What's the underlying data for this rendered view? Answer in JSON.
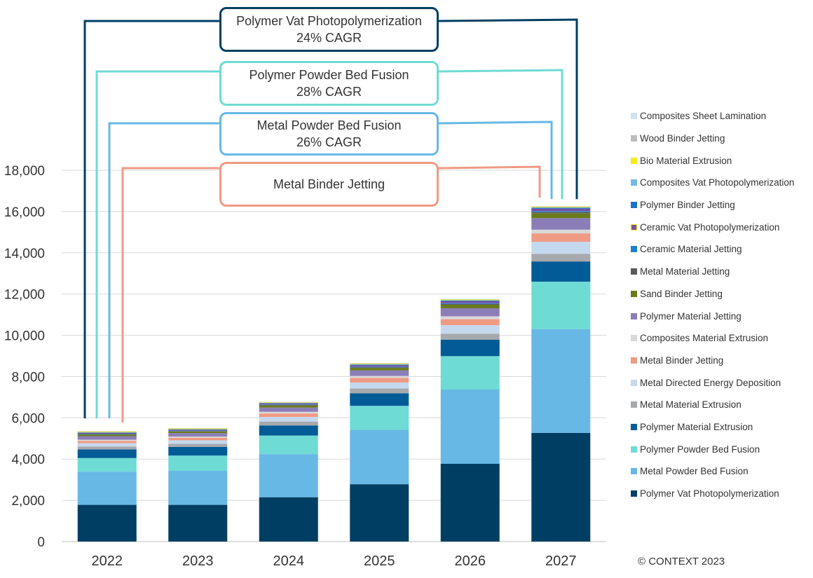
{
  "chart_data": {
    "type": "bar",
    "stacked": true,
    "categories": [
      "2022",
      "2023",
      "2024",
      "2025",
      "2026",
      "2027"
    ],
    "ylim": [
      0,
      18000
    ],
    "y_ticks": [
      "0",
      "2,000",
      "4,000",
      "6,000",
      "8,000",
      "10,000",
      "12,000",
      "14,000",
      "16,000",
      "18,000"
    ],
    "grid": true,
    "legend_position": "right",
    "series": [
      {
        "name": "Polymer Vat Photopolymerization",
        "color": "#003f63",
        "values": [
          1780,
          1780,
          2150,
          2780,
          3770,
          5270
        ]
      },
      {
        "name": "Metal Powder Bed Fusion",
        "color": "#68b8e6",
        "values": [
          1610,
          1650,
          2090,
          2640,
          3600,
          5030
        ]
      },
      {
        "name": "Polymer Powder Bed Fusion",
        "color": "#6edbd4",
        "values": [
          660,
          740,
          900,
          1160,
          1620,
          2300
        ]
      },
      {
        "name": "Polymer Material Extrusion",
        "color": "#005b96",
        "values": [
          420,
          420,
          490,
          610,
          800,
          980
        ]
      },
      {
        "name": "Metal Material Extrusion",
        "color": "#a7a9ac",
        "values": [
          140,
          150,
          190,
          230,
          290,
          370
        ]
      },
      {
        "name": "Metal Directed Energy Deposition",
        "color": "#c5d9ee",
        "values": [
          160,
          170,
          220,
          290,
          410,
          580
        ]
      },
      {
        "name": "Metal Binder Jetting",
        "color": "#ef9a83",
        "values": [
          110,
          120,
          170,
          220,
          290,
          410
        ]
      },
      {
        "name": "Composites Material Extrusion",
        "color": "#d9d9d9",
        "values": [
          60,
          60,
          80,
          100,
          140,
          180
        ]
      },
      {
        "name": "Polymer Material Jetting",
        "color": "#8b7eb8",
        "values": [
          170,
          170,
          210,
          270,
          390,
          560
        ]
      },
      {
        "name": "Sand Binder Jetting",
        "color": "#6b7a1a",
        "values": [
          80,
          80,
          100,
          120,
          170,
          240
        ]
      },
      {
        "name": "Metal Material Jetting",
        "color": "#595959",
        "values": [
          20,
          20,
          25,
          30,
          40,
          50
        ]
      },
      {
        "name": "Ceramic Material Jetting",
        "color": "#1f7fc7",
        "values": [
          20,
          20,
          25,
          30,
          40,
          50
        ]
      },
      {
        "name": "Ceramic Vat Photopolymerization",
        "color": "#7b4fa0",
        "values": [
          40,
          40,
          50,
          70,
          90,
          120
        ]
      },
      {
        "name": "Polymer Binder Jetting",
        "color": "#1a73c9",
        "values": [
          20,
          20,
          20,
          30,
          30,
          40
        ]
      },
      {
        "name": "Composites Vat Photopolymerization",
        "color": "#75b9e0",
        "values": [
          10,
          10,
          10,
          20,
          20,
          20
        ]
      },
      {
        "name": "Bio Material Extrusion",
        "color": "#f4ec16",
        "values": [
          40,
          40,
          30,
          40,
          40,
          40
        ]
      },
      {
        "name": "Wood Binder Jetting",
        "color": "#bdbdbd",
        "values": [
          10,
          10,
          10,
          10,
          10,
          10
        ]
      },
      {
        "name": "Composites Sheet Lamination",
        "color": "#cfe3f2",
        "values": [
          10,
          10,
          10,
          10,
          10,
          10
        ]
      }
    ],
    "annotations": [
      {
        "series": "Polymer Vat Photopolymerization",
        "line1": "Polymer Vat Photopolymerization",
        "line2": "24% CAGR",
        "color": "#003f63"
      },
      {
        "series": "Polymer Powder Bed Fusion",
        "line1": "Polymer Powder Bed Fusion",
        "line2": "28% CAGR",
        "color": "#6edbd4"
      },
      {
        "series": "Metal Powder Bed Fusion",
        "line1": "Metal Powder Bed Fusion",
        "line2": "26% CAGR",
        "color": "#68b8e6"
      },
      {
        "series": "Metal Binder Jetting",
        "line1": "Metal Binder Jetting",
        "line2": "",
        "color": "#ef9a83"
      }
    ],
    "copyright": "© CONTEXT 2023"
  }
}
